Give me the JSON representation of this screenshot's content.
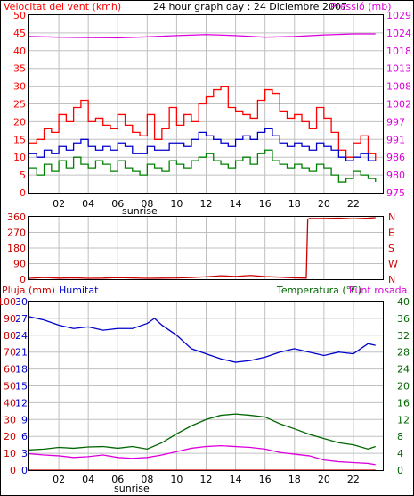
{
  "colors": {
    "wind": "#ff0000",
    "gust": "#ff0000",
    "avg": "#008000",
    "windavg": "#0000cc",
    "pressure": "#dd00dd",
    "direction": "#cc0000",
    "rain": "#cc0000",
    "humidity": "#0000cc",
    "temperature": "#006600",
    "dewpoint": "#dd00dd",
    "grid": "#c0c0c0",
    "frame": "#000000"
  },
  "chart_data": [
    {
      "type": "line",
      "title": "24 hour graph day : 24 Diciembre 2007",
      "ylabel_left": "Velocitat del vent (kmh)",
      "ylabel_right": "Pressió (mb)",
      "x_ticks": [
        "02",
        "04",
        "06",
        "08",
        "10",
        "12",
        "14",
        "16",
        "18",
        "20",
        "22"
      ],
      "x_annotation": "sunrise",
      "ylim_left": [
        0,
        50
      ],
      "left_ticks": [
        "0",
        "5",
        "10",
        "15",
        "20",
        "25",
        "30",
        "35",
        "40",
        "45",
        "50"
      ],
      "right_ticks": [
        "975",
        "980",
        "986",
        "991",
        "997",
        "1002",
        "1008",
        "1013",
        "1018",
        "1024",
        "1029"
      ],
      "ylim_right": [
        975,
        1029
      ],
      "xlim_hours": [
        0,
        24
      ],
      "grid": true,
      "series": [
        {
          "name": "Velocitat del vent (kmh)",
          "role": "gust",
          "x": [
            0,
            0.5,
            1,
            1.5,
            2,
            2.5,
            3,
            3.5,
            4,
            4.5,
            5,
            5.5,
            6,
            6.5,
            7,
            7.5,
            8,
            8.5,
            9,
            9.5,
            10,
            10.5,
            11,
            11.5,
            12,
            12.5,
            13,
            13.5,
            14,
            14.5,
            15,
            15.5,
            16,
            16.5,
            17,
            17.5,
            18,
            18.5,
            19,
            19.5,
            20,
            20.5,
            21,
            21.5,
            22,
            22.5,
            23,
            23.5
          ],
          "values": [
            14,
            15,
            18,
            17,
            22,
            20,
            24,
            26,
            20,
            21,
            19,
            18,
            22,
            19,
            17,
            16,
            22,
            15,
            18,
            24,
            19,
            22,
            20,
            25,
            27,
            29,
            30,
            24,
            23,
            22,
            21,
            26,
            29,
            28,
            23,
            21,
            22,
            20,
            18,
            24,
            21,
            17,
            12,
            10,
            14,
            16,
            11,
            9
          ]
        },
        {
          "name": "",
          "role": "average",
          "x": [
            0,
            0.5,
            1,
            1.5,
            2,
            2.5,
            3,
            3.5,
            4,
            4.5,
            5,
            5.5,
            6,
            6.5,
            7,
            7.5,
            8,
            8.5,
            9,
            9.5,
            10,
            10.5,
            11,
            11.5,
            12,
            12.5,
            13,
            13.5,
            14,
            14.5,
            15,
            15.5,
            16,
            16.5,
            17,
            17.5,
            18,
            18.5,
            19,
            19.5,
            20,
            20.5,
            21,
            21.5,
            22,
            22.5,
            23,
            23.5
          ],
          "values": [
            11,
            10,
            12,
            11,
            13,
            12,
            14,
            15,
            13,
            12,
            13,
            12,
            14,
            13,
            11,
            11,
            13,
            12,
            12,
            14,
            14,
            13,
            15,
            17,
            16,
            15,
            14,
            13,
            15,
            16,
            15,
            17,
            18,
            16,
            14,
            13,
            14,
            13,
            12,
            14,
            13,
            12,
            10,
            9,
            10,
            11,
            9,
            9
          ]
        },
        {
          "name": "",
          "role": "minimum",
          "x": [
            0,
            0.5,
            1,
            1.5,
            2,
            2.5,
            3,
            3.5,
            4,
            4.5,
            5,
            5.5,
            6,
            6.5,
            7,
            7.5,
            8,
            8.5,
            9,
            9.5,
            10,
            10.5,
            11,
            11.5,
            12,
            12.5,
            13,
            13.5,
            14,
            14.5,
            15,
            15.5,
            16,
            16.5,
            17,
            17.5,
            18,
            18.5,
            19,
            19.5,
            20,
            20.5,
            21,
            21.5,
            22,
            22.5,
            23,
            23.5
          ],
          "values": [
            7,
            5,
            8,
            6,
            9,
            7,
            10,
            8,
            7,
            9,
            8,
            6,
            9,
            7,
            6,
            5,
            8,
            7,
            6,
            9,
            8,
            7,
            9,
            10,
            11,
            9,
            8,
            7,
            9,
            10,
            8,
            11,
            12,
            9,
            8,
            7,
            8,
            7,
            6,
            8,
            7,
            5,
            3,
            4,
            6,
            5,
            4,
            3
          ]
        },
        {
          "name": "Pressió (mb)",
          "role": "pressure",
          "x": [
            0,
            2,
            4,
            6,
            8,
            10,
            12,
            14,
            16,
            18,
            20,
            22,
            23.5
          ],
          "values": [
            1022.5,
            1022.3,
            1022.2,
            1022.1,
            1022.4,
            1022.8,
            1023.1,
            1022.8,
            1022.3,
            1022.5,
            1023.0,
            1023.3,
            1023.3
          ]
        }
      ]
    },
    {
      "type": "line",
      "ylim": [
        0,
        360
      ],
      "left_ticks": [
        "0",
        "90",
        "180",
        "270",
        "360"
      ],
      "right_labels": [
        "N",
        "W",
        "S",
        "E",
        "N"
      ],
      "x_ticks": [
        "02",
        "04",
        "06",
        "08",
        "10",
        "12",
        "14",
        "16",
        "18",
        "20",
        "22"
      ],
      "grid": true,
      "series": [
        {
          "name": "",
          "role": "direction",
          "x": [
            0,
            1,
            2,
            3,
            4,
            5,
            6,
            7,
            8,
            9,
            10,
            11,
            12,
            13,
            14,
            15,
            16,
            17,
            18,
            18.8,
            18.9,
            19,
            20,
            21,
            22,
            23,
            23.5
          ],
          "values": [
            5,
            10,
            6,
            8,
            5,
            6,
            9,
            7,
            5,
            6,
            7,
            10,
            14,
            20,
            16,
            22,
            15,
            12,
            8,
            6,
            345,
            350,
            350,
            352,
            348,
            352,
            355
          ]
        }
      ]
    },
    {
      "type": "line",
      "ylabel_left_outer": "Pluja (mm)",
      "ylabel_left_inner": "Humitat",
      "ylabel_right": "Temperatura (°C)",
      "ylabel_right2": "Punt rosada",
      "x_ticks": [
        "02",
        "04",
        "06",
        "08",
        "10",
        "12",
        "14",
        "16",
        "18",
        "20",
        "22"
      ],
      "x_annotation": "sunrise",
      "left_outer_ticks": [
        "0",
        "10",
        "20",
        "30",
        "40",
        "50",
        "60",
        "70",
        "80",
        "90",
        "100"
      ],
      "left_inner_ticks": [
        "0",
        "3",
        "6",
        "9",
        "12",
        "15",
        "18",
        "21",
        "24",
        "27",
        "30"
      ],
      "right_ticks": [
        "0",
        "4",
        "8",
        "12",
        "16",
        "20",
        "24",
        "28",
        "32",
        "36",
        "40"
      ],
      "grid": true,
      "series": [
        {
          "name": "Humitat",
          "role": "humidity",
          "x": [
            0,
            1,
            2,
            3,
            4,
            5,
            6,
            7,
            8,
            8.5,
            9,
            10,
            11,
            12,
            13,
            14,
            15,
            16,
            17,
            18,
            19,
            20,
            21,
            22,
            23,
            23.5
          ],
          "values": [
            91,
            89,
            86,
            84,
            85,
            83,
            84,
            84,
            87,
            90,
            86,
            80,
            72,
            69,
            66,
            64,
            65,
            67,
            70,
            72,
            70,
            68,
            70,
            69,
            75,
            74
          ]
        },
        {
          "name": "Temperatura (°C)",
          "role": "temperature",
          "x": [
            0,
            1,
            2,
            3,
            4,
            5,
            6,
            7,
            8,
            9,
            10,
            11,
            12,
            13,
            14,
            15,
            16,
            17,
            18,
            19,
            20,
            21,
            22,
            23,
            23.5
          ],
          "values": [
            4.8,
            5.0,
            5.4,
            5.2,
            5.5,
            5.6,
            5.2,
            5.6,
            5.0,
            6.5,
            8.6,
            10.5,
            12.0,
            13.0,
            13.3,
            13.0,
            12.6,
            11.0,
            9.8,
            8.5,
            7.5,
            6.5,
            6.0,
            5.0,
            5.6
          ]
        },
        {
          "name": "Punt rosada",
          "role": "dewpoint",
          "x": [
            0,
            1,
            2,
            3,
            4,
            5,
            6,
            7,
            8,
            9,
            10,
            11,
            12,
            13,
            14,
            15,
            16,
            17,
            18,
            19,
            20,
            21,
            22,
            23,
            23.5
          ],
          "values": [
            3.9,
            3.6,
            3.4,
            3.0,
            3.2,
            3.6,
            3.0,
            2.8,
            3.0,
            3.6,
            4.4,
            5.2,
            5.6,
            5.8,
            5.6,
            5.4,
            5.0,
            4.2,
            3.8,
            3.4,
            2.4,
            2.0,
            1.8,
            1.6,
            1.3
          ]
        },
        {
          "name": "Pluja (mm)",
          "role": "rain",
          "x": [
            0,
            23.5
          ],
          "values": [
            0,
            0
          ]
        }
      ]
    }
  ]
}
